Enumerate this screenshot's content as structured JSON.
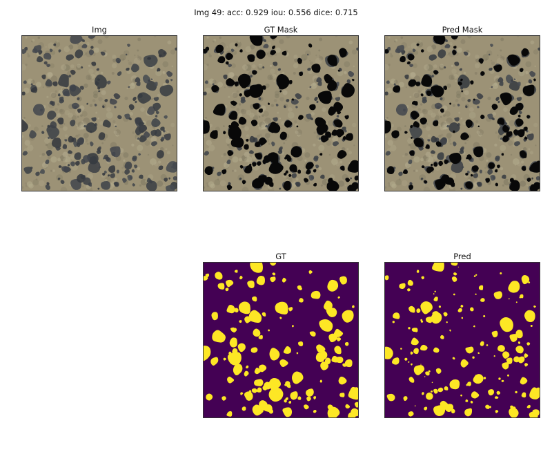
{
  "figure": {
    "suptitle": "Img 49: acc: 0.929 iou: 0.556 dice: 0.715",
    "panels": [
      {
        "id": "img",
        "title": "Img",
        "kind": "aerial photo"
      },
      {
        "id": "gt-mask",
        "title": "GT Mask",
        "kind": "aerial photo with ground-truth blobs in black"
      },
      {
        "id": "pred-mask",
        "title": "Pred Mask",
        "kind": "aerial photo with predicted blobs in black"
      },
      {
        "id": "gt",
        "title": "GT",
        "kind": "binary mask"
      },
      {
        "id": "pred",
        "title": "Pred",
        "kind": "binary mask"
      }
    ]
  },
  "colors": {
    "ground": "#9c9276",
    "vegetation": "#2f3436",
    "mask_black": "#080808",
    "mask_bg": "#440154",
    "mask_fg": "#fde725"
  }
}
